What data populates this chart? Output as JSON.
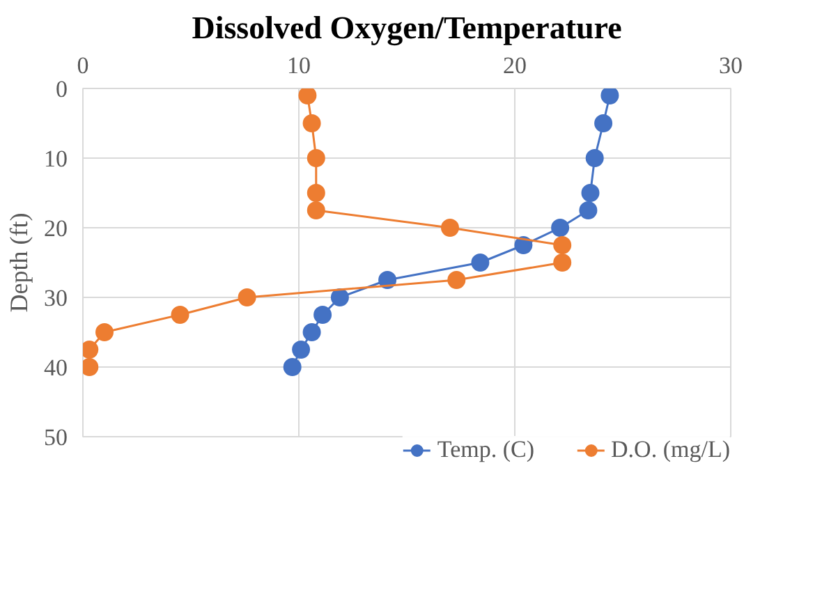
{
  "chart_data": {
    "type": "line",
    "title": "Dissolved Oxygen/Temperature",
    "ylabel": "Depth (ft)",
    "orientation": "horizontal",
    "xlim": [
      0,
      30
    ],
    "xticks": [
      0,
      10,
      20,
      30
    ],
    "ylim": [
      50,
      0
    ],
    "yticks": [
      0,
      10,
      20,
      30,
      40,
      50
    ],
    "grid": true,
    "legend": "bottom",
    "marker": "circle",
    "line_style": "solid",
    "series": [
      {
        "name": "Temp. (C)",
        "color": "#4472c4",
        "values": [
          24.4,
          24.1,
          23.7,
          23.5,
          23.4,
          22.1,
          20.4,
          18.4,
          14.1,
          11.9,
          11.1,
          10.6,
          10.1,
          9.7
        ],
        "x": [
          1,
          5,
          10,
          15,
          17.5,
          20,
          22.5,
          25,
          27.5,
          30,
          32.5,
          35,
          37.5,
          40
        ]
      },
      {
        "name": "D.O. (mg/L)",
        "color": "#ed7d31",
        "values": [
          10.4,
          10.6,
          10.8,
          10.8,
          10.8,
          17.0,
          22.2,
          22.2,
          17.3,
          7.6,
          4.5,
          1.0,
          0.3,
          0.3
        ],
        "x": [
          1,
          5,
          10,
          15,
          17.5,
          20,
          22.5,
          25,
          27.5,
          30,
          32.5,
          35,
          37.5,
          40
        ]
      }
    ]
  }
}
